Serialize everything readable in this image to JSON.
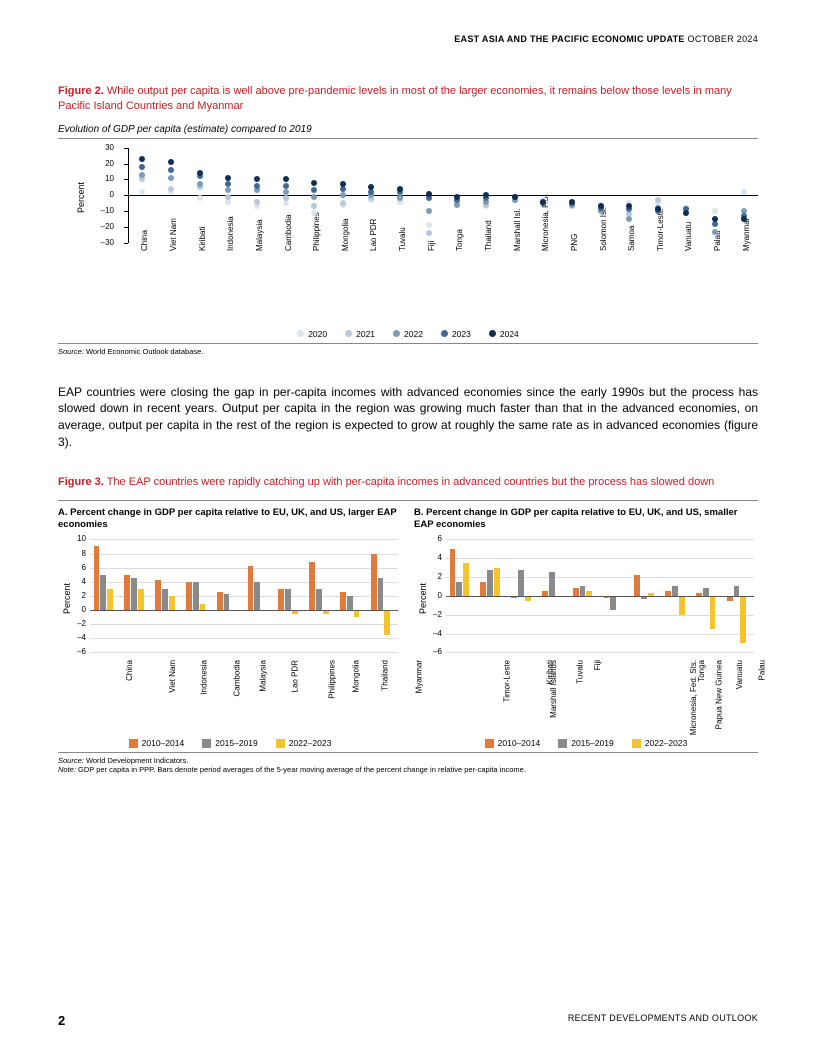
{
  "header": {
    "bold": "EAST ASIA AND THE PACIFIC ECONOMIC UPDATE",
    "light": " OCTOBER 2024"
  },
  "fig2": {
    "label": "Figure 2.",
    "text": " While output per capita is well above pre-pandemic levels in most of the larger economies, it remains below those levels in many Pacific Island Countries and Myanmar",
    "subtitle": "Evolution of GDP per capita (estimate) compared to 2019",
    "source_label": "Source:",
    "source_text": " World Economic Outlook database.",
    "ylabel": "Percent",
    "ylim": [
      -30,
      30
    ],
    "ytick_step": 10,
    "categories": [
      "China",
      "Viet Nam",
      "Kiribati",
      "Indonesia",
      "Malaysia",
      "Cambodia",
      "Philippines",
      "Mongolia",
      "Lao PDR",
      "Tuvalu",
      "Fiji",
      "Tonga",
      "Thailand",
      "Marshall Isl.",
      "Micronesia, F.S.",
      "PNG",
      "Solomon Isl.",
      "Samoa",
      "Timor-Leste",
      "Vanuatu",
      "Palau",
      "Myanmar"
    ],
    "series": [
      {
        "name": "2020",
        "color": "#dbe5ee",
        "values": [
          2,
          2,
          -2,
          -4,
          -7,
          -5,
          -11,
          -6,
          -3,
          -4,
          -19,
          -1,
          -7,
          -3,
          -3,
          -5,
          -6,
          -5,
          -5,
          -8,
          -10,
          2
        ]
      },
      {
        "name": "2021",
        "color": "#b6c8d9",
        "values": [
          10,
          4,
          5,
          -1,
          -4,
          -2,
          -7,
          -5,
          -2,
          -2,
          -24,
          -4,
          -6,
          -3,
          -5,
          -7,
          -7,
          -12,
          -3,
          -9,
          -23,
          -13
        ]
      },
      {
        "name": "2022",
        "color": "#7d9bb8",
        "values": [
          13,
          11,
          7,
          3,
          3,
          2,
          -1,
          0,
          0,
          -2,
          -10,
          -6,
          -4,
          -3,
          -5,
          -6,
          -10,
          -15,
          -8,
          -9,
          -23,
          -10
        ]
      },
      {
        "name": "2023",
        "color": "#3d6a95",
        "values": [
          18,
          16,
          12,
          7,
          6,
          6,
          3,
          4,
          2,
          2,
          -2,
          -3,
          -2,
          -1,
          -5,
          -5,
          -8,
          -9,
          -10,
          -9,
          -18,
          -13
        ]
      },
      {
        "name": "2024",
        "color": "#0f2e52",
        "values": [
          23,
          21,
          14,
          11,
          10,
          10,
          8,
          7,
          5,
          4,
          1,
          -1,
          0,
          -1,
          -4,
          -4,
          -7,
          -7,
          -9,
          -11,
          -15,
          -15
        ]
      }
    ]
  },
  "body": "EAP countries were closing the gap in per-capita incomes with advanced economies since the early 1990s but the process has slowed down in recent years. Output per capita in the region was growing much faster than that in the advanced economies, on average, output per capita in the rest of the region is expected to grow at roughly the same rate as in advanced economies (figure 3).",
  "fig3": {
    "label": "Figure 3.",
    "text": " The EAP countries were rapidly catching up with per-capita incomes in advanced countries but the process has slowed down",
    "source_label": "Source:",
    "source_text": " World Development Indicators.",
    "note_label": "Note:",
    "note_text": " GDP per capita in PPP. Bars denote period averages of the 5-year moving average of the percent change in relative per-capita income.",
    "ylabel": "Percent",
    "series_meta": [
      {
        "name": "2010–2014",
        "color": "#e07b3c"
      },
      {
        "name": "2015–2019",
        "color": "#8a8a8a"
      },
      {
        "name": "2022–2023",
        "color": "#f4c430"
      }
    ],
    "panelA": {
      "title": "A. Percent change in GDP per capita relative to EU, UK, and US, larger EAP economies",
      "ylim": [
        -6,
        10
      ],
      "ytick_step": 2,
      "categories": [
        "China",
        "Viet Nam",
        "Indonesia",
        "Cambodia",
        "Malaysia",
        "Lao PDR",
        "Philippines",
        "Mongolia",
        "Thailand",
        "Myanmar"
      ],
      "values": [
        [
          9,
          5,
          3
        ],
        [
          5,
          4.5,
          3
        ],
        [
          4.2,
          3,
          2
        ],
        [
          4,
          4,
          0.8
        ],
        [
          2.5,
          2.3,
          0
        ],
        [
          6.2,
          4,
          0
        ],
        [
          3,
          3,
          -0.5
        ],
        [
          6.8,
          3,
          -0.5
        ],
        [
          2.5,
          2,
          -1
        ],
        [
          8,
          4.5,
          -3.5
        ]
      ]
    },
    "panelB": {
      "title": "B. Percent change in GDP per capita relative to EU, UK, and US, smaller EAP economies",
      "ylim": [
        -6,
        6
      ],
      "ytick_step": 2,
      "categories": [
        "Timor-Leste",
        "Marshall Islands",
        "Kiribati",
        "Tuvalu",
        "Fiji",
        "Micronesia, Fed. Sts.",
        "Papua New Guinea",
        "Tonga",
        "Vanuatu",
        "Palau"
      ],
      "values": [
        [
          5,
          1.5,
          3.5
        ],
        [
          1.5,
          2.8,
          3
        ],
        [
          -0.2,
          2.8,
          -0.5
        ],
        [
          0.5,
          2.5,
          0
        ],
        [
          0.8,
          1,
          0.5
        ],
        [
          -0.2,
          -1.5,
          0
        ],
        [
          2.2,
          -0.3,
          0.3
        ],
        [
          0.5,
          1,
          -2
        ],
        [
          0.3,
          0.8,
          -3.5
        ],
        [
          -0.5,
          1,
          -5
        ]
      ]
    }
  },
  "footer": {
    "page": "2",
    "right": "RECENT DEVELOPMENTS AND OUTLOOK"
  }
}
